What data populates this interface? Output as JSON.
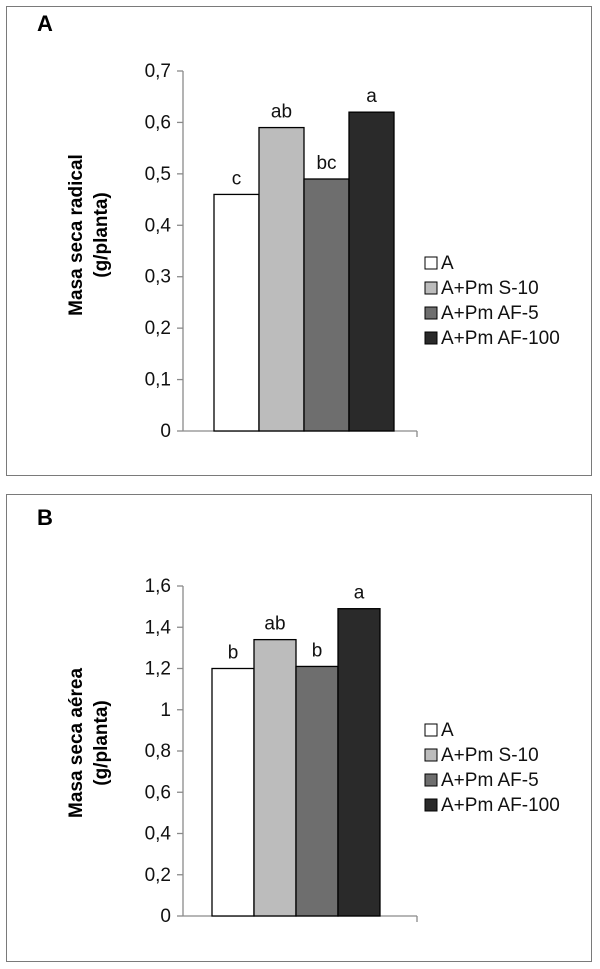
{
  "chart_data": [
    {
      "type": "bar",
      "panel_label": "A",
      "ylabel_line1": "Masa seca radical",
      "ylabel_line2": "(g/planta)",
      "ylim": [
        0,
        0.7
      ],
      "ticks": [
        "0",
        "0,1",
        "0,2",
        "0,3",
        "0,4",
        "0,5",
        "0,6",
        "0,7"
      ],
      "tick_values": [
        0,
        0.1,
        0.2,
        0.3,
        0.4,
        0.5,
        0.6,
        0.7
      ],
      "series": [
        {
          "name": "A",
          "value": 0.46,
          "label": "c",
          "color": "#ffffff"
        },
        {
          "name": "A+Pm S-10",
          "value": 0.59,
          "label": "ab",
          "color": "#bcbcbc"
        },
        {
          "name": "A+Pm AF-5",
          "value": 0.49,
          "label": "bc",
          "color": "#6e6e6e"
        },
        {
          "name": "A+Pm AF-100",
          "value": 0.62,
          "label": "a",
          "color": "#2a2a2a"
        }
      ],
      "legend_position": "right"
    },
    {
      "type": "bar",
      "panel_label": "B",
      "ylabel_line1": "Masa seca aérea",
      "ylabel_line2": "(g/planta)",
      "ylim": [
        0,
        1.6
      ],
      "ticks": [
        "0",
        "0,2",
        "0,4",
        "0,6",
        "0,8",
        "1",
        "1,2",
        "1,4",
        "1,6"
      ],
      "tick_values": [
        0,
        0.2,
        0.4,
        0.6,
        0.8,
        1.0,
        1.2,
        1.4,
        1.6
      ],
      "series": [
        {
          "name": "A",
          "value": 1.2,
          "label": "b",
          "color": "#ffffff"
        },
        {
          "name": "A+Pm S-10",
          "value": 1.34,
          "label": "ab",
          "color": "#bcbcbc"
        },
        {
          "name": "A+Pm AF-5",
          "value": 1.21,
          "label": "b",
          "color": "#6e6e6e"
        },
        {
          "name": "A+Pm AF-100",
          "value": 1.49,
          "label": "a",
          "color": "#2a2a2a"
        }
      ],
      "legend_position": "right"
    }
  ]
}
